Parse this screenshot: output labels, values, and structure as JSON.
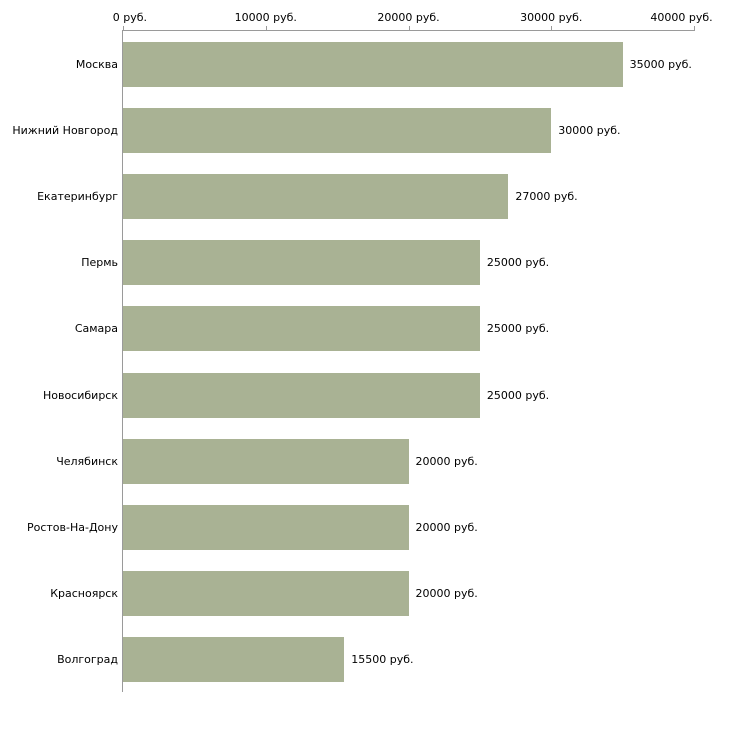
{
  "chart_data": {
    "type": "bar",
    "orientation": "horizontal",
    "title": "",
    "xlabel": "",
    "ylabel": "",
    "xlim": [
      0,
      40000
    ],
    "grid": false,
    "legend": "none",
    "bar_color": "#a9b294",
    "axis_color": "#9a9a9a",
    "x_ticks": [
      {
        "value": 0,
        "label": "0 руб."
      },
      {
        "value": 10000,
        "label": "10000 руб."
      },
      {
        "value": 20000,
        "label": "20000 руб."
      },
      {
        "value": 30000,
        "label": "30000 руб."
      },
      {
        "value": 40000,
        "label": "40000 руб."
      }
    ],
    "categories": [
      "Москва",
      "Нижний Новгород",
      "Екатеринбург",
      "Пермь",
      "Самара",
      "Новосибирск",
      "Челябинск",
      "Ростов-На-Дону",
      "Красноярск",
      "Волгоград"
    ],
    "values": [
      35000,
      30000,
      27000,
      25000,
      25000,
      25000,
      20000,
      20000,
      20000,
      15500
    ],
    "value_labels": [
      "35000 руб.",
      "30000 руб.",
      "27000 руб.",
      "25000 руб.",
      "25000 руб.",
      "25000 руб.",
      "20000 руб.",
      "20000 руб.",
      "20000 руб.",
      "15500 руб."
    ]
  }
}
